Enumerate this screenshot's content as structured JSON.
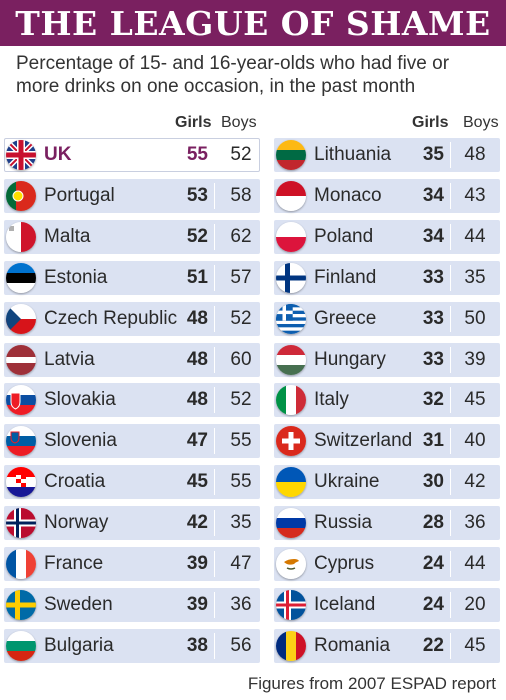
{
  "title": "THE LEAGUE OF SHAME",
  "subtitle": "Percentage of 15- and 16-year-olds who had five or more drinks on one occasion, in the past month",
  "headers": {
    "girls": "Girls",
    "boys": "Boys"
  },
  "footer": "Figures from 2007 ESPAD report",
  "colors": {
    "banner": "#7a2060",
    "row_bg": "#dbe2f2",
    "highlight_text": "#7a2060"
  },
  "chart_data": {
    "type": "table",
    "title": "THE LEAGUE OF SHAME",
    "subtitle": "Percentage of 15- and 16-year-olds who had five or more drinks on one occasion, in the past month",
    "columns": [
      "Girls",
      "Boys"
    ],
    "rows": [
      {
        "country": "UK",
        "girls": 55,
        "boys": 52,
        "flag": "uk-flag-icon",
        "highlight": true
      },
      {
        "country": "Portugal",
        "girls": 53,
        "boys": 58,
        "flag": "portugal-flag-icon"
      },
      {
        "country": "Malta",
        "girls": 52,
        "boys": 62,
        "flag": "malta-flag-icon"
      },
      {
        "country": "Estonia",
        "girls": 51,
        "boys": 57,
        "flag": "estonia-flag-icon"
      },
      {
        "country": "Czech Republic",
        "girls": 48,
        "boys": 52,
        "flag": "czech-flag-icon"
      },
      {
        "country": "Latvia",
        "girls": 48,
        "boys": 60,
        "flag": "latvia-flag-icon"
      },
      {
        "country": "Slovakia",
        "girls": 48,
        "boys": 52,
        "flag": "slovakia-flag-icon"
      },
      {
        "country": "Slovenia",
        "girls": 47,
        "boys": 55,
        "flag": "slovenia-flag-icon"
      },
      {
        "country": "Croatia",
        "girls": 45,
        "boys": 55,
        "flag": "croatia-flag-icon"
      },
      {
        "country": "Norway",
        "girls": 42,
        "boys": 35,
        "flag": "norway-flag-icon"
      },
      {
        "country": "France",
        "girls": 39,
        "boys": 47,
        "flag": "france-flag-icon"
      },
      {
        "country": "Sweden",
        "girls": 39,
        "boys": 36,
        "flag": "sweden-flag-icon"
      },
      {
        "country": "Bulgaria",
        "girls": 38,
        "boys": 56,
        "flag": "bulgaria-flag-icon"
      },
      {
        "country": "Lithuania",
        "girls": 35,
        "boys": 48,
        "flag": "lithuania-flag-icon"
      },
      {
        "country": "Monaco",
        "girls": 34,
        "boys": 43,
        "flag": "monaco-flag-icon"
      },
      {
        "country": "Poland",
        "girls": 34,
        "boys": 44,
        "flag": "poland-flag-icon"
      },
      {
        "country": "Finland",
        "girls": 33,
        "boys": 35,
        "flag": "finland-flag-icon"
      },
      {
        "country": "Greece",
        "girls": 33,
        "boys": 50,
        "flag": "greece-flag-icon"
      },
      {
        "country": "Hungary",
        "girls": 33,
        "boys": 39,
        "flag": "hungary-flag-icon"
      },
      {
        "country": "Italy",
        "girls": 32,
        "boys": 45,
        "flag": "italy-flag-icon"
      },
      {
        "country": "Switzerland",
        "girls": 31,
        "boys": 40,
        "flag": "switzerland-flag-icon"
      },
      {
        "country": "Ukraine",
        "girls": 30,
        "boys": 42,
        "flag": "ukraine-flag-icon"
      },
      {
        "country": "Russia",
        "girls": 28,
        "boys": 36,
        "flag": "russia-flag-icon"
      },
      {
        "country": "Cyprus",
        "girls": 24,
        "boys": 44,
        "flag": "cyprus-flag-icon"
      },
      {
        "country": "Iceland",
        "girls": 24,
        "boys": 20,
        "flag": "iceland-flag-icon"
      },
      {
        "country": "Romania",
        "girls": 22,
        "boys": 45,
        "flag": "romania-flag-icon"
      }
    ]
  }
}
